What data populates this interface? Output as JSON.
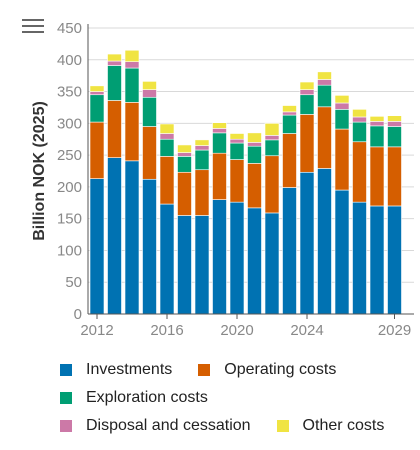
{
  "chart_data": {
    "type": "bar",
    "stacked": true,
    "ylabel": "Billion NOK (2025)",
    "xlabel": "",
    "ylim": [
      0,
      450
    ],
    "yticks": [
      0,
      50,
      100,
      150,
      200,
      250,
      300,
      350,
      400,
      450
    ],
    "xticks": [
      2012,
      2016,
      2020,
      2024,
      2029
    ],
    "grid": true,
    "legend_position": "bottom",
    "categories": [
      2012,
      2013,
      2014,
      2015,
      2016,
      2017,
      2018,
      2019,
      2020,
      2021,
      2022,
      2023,
      2024,
      2025,
      2026,
      2027,
      2028,
      2029
    ],
    "series": [
      {
        "name": "Investments",
        "color": "#0072b2",
        "values": [
          213,
          246,
          241,
          212,
          173,
          155,
          155,
          180,
          176,
          167,
          159,
          199,
          223,
          229,
          195,
          176,
          170,
          170
        ]
      },
      {
        "name": "Operating costs",
        "color": "#d55e00",
        "values": [
          89,
          90,
          92,
          83,
          75,
          68,
          72,
          73,
          67,
          70,
          90,
          85,
          91,
          97,
          96,
          95,
          93,
          93
        ]
      },
      {
        "name": "Exploration costs",
        "color": "#009e73",
        "values": [
          43,
          55,
          54,
          46,
          27,
          25,
          31,
          32,
          26,
          27,
          25,
          29,
          31,
          34,
          31,
          31,
          33,
          32
        ]
      },
      {
        "name": "Disposal and cessation",
        "color": "#cc79a7",
        "values": [
          5,
          7,
          10,
          12,
          9,
          6,
          7,
          7,
          6,
          6,
          7,
          5,
          8,
          9,
          10,
          8,
          7,
          8
        ]
      },
      {
        "name": "Other costs",
        "color": "#f0e442",
        "values": [
          9,
          11,
          18,
          13,
          15,
          12,
          9,
          9,
          9,
          15,
          19,
          10,
          12,
          12,
          12,
          12,
          8,
          9
        ]
      }
    ]
  },
  "menu": {
    "icon": "hamburger-menu-icon"
  }
}
